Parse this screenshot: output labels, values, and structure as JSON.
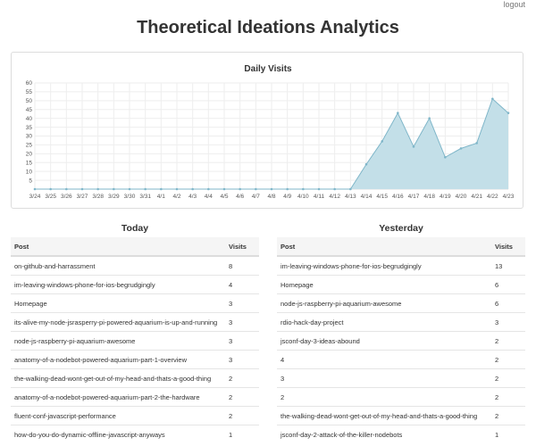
{
  "header": {
    "logout_label": "logout",
    "page_title": "Theoretical Ideations Analytics"
  },
  "chart_data": {
    "type": "area",
    "title": "Daily Visits",
    "xlabel": "",
    "ylabel": "",
    "x": [
      "3/24",
      "3/25",
      "3/26",
      "3/27",
      "3/28",
      "3/29",
      "3/30",
      "3/31",
      "4/1",
      "4/2",
      "4/3",
      "4/4",
      "4/5",
      "4/6",
      "4/7",
      "4/8",
      "4/9",
      "4/10",
      "4/11",
      "4/12",
      "4/13",
      "4/14",
      "4/15",
      "4/16",
      "4/17",
      "4/18",
      "4/19",
      "4/20",
      "4/21",
      "4/22",
      "4/23"
    ],
    "values": [
      0,
      0,
      0,
      0,
      0,
      0,
      0,
      0,
      0,
      0,
      0,
      0,
      0,
      0,
      0,
      0,
      0,
      0,
      0,
      0,
      0,
      14,
      27,
      43,
      24,
      40,
      18,
      23,
      26,
      51,
      43
    ],
    "ylim": [
      0,
      60
    ],
    "yticks": [
      5,
      10,
      15,
      20,
      25,
      30,
      35,
      40,
      45,
      50,
      55,
      60
    ],
    "grid": true,
    "colors": {
      "fill": "#c3dfe8",
      "line": "#7fb6c9",
      "grid": "#eeeeee"
    }
  },
  "today": {
    "title": "Today",
    "columns": [
      "Post",
      "Visits"
    ],
    "rows": [
      [
        "on-github-and-harrassment",
        "8"
      ],
      [
        "im-leaving-windows-phone-for-ios-begrudgingly",
        "4"
      ],
      [
        "Homepage",
        "3"
      ],
      [
        "its-alive-my-node-jsrasperry-pi-powered-aquarium-is-up-and-running",
        "3"
      ],
      [
        "node-js-raspberry-pi-aquarium-awesome",
        "3"
      ],
      [
        "anatomy-of-a-nodebot-powered-aquarium-part-1-overview",
        "3"
      ],
      [
        "the-walking-dead-wont-get-out-of-my-head-and-thats-a-good-thing",
        "2"
      ],
      [
        "anatomy-of-a-nodebot-powered-aquarium-part-2-the-hardware",
        "2"
      ],
      [
        "fluent-conf-javascript-performance",
        "2"
      ],
      [
        "how-do-you-do-dynamic-offline-javascript-anyways",
        "1"
      ]
    ]
  },
  "yesterday": {
    "title": "Yesterday",
    "columns": [
      "Post",
      "Visits"
    ],
    "rows": [
      [
        "im-leaving-windows-phone-for-ios-begrudgingly",
        "13"
      ],
      [
        "Homepage",
        "6"
      ],
      [
        "node-js-raspberry-pi-aquarium-awesome",
        "6"
      ],
      [
        "rdio-hack-day-project",
        "3"
      ],
      [
        "jsconf-day-3-ideas-abound",
        "2"
      ],
      [
        "4",
        "2"
      ],
      [
        "3",
        "2"
      ],
      [
        "2",
        "2"
      ],
      [
        "the-walking-dead-wont-get-out-of-my-head-and-thats-a-good-thing",
        "2"
      ],
      [
        "jsconf-day-2-attack-of-the-killer-nodebots",
        "1"
      ]
    ]
  }
}
